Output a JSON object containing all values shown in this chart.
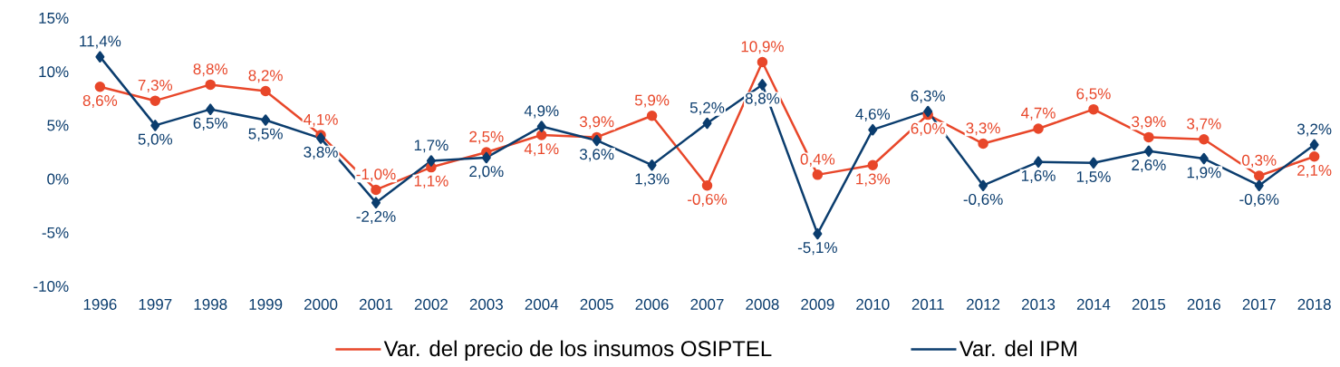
{
  "chart_data": {
    "type": "line",
    "categories": [
      "1996",
      "1997",
      "1998",
      "1999",
      "2000",
      "2001",
      "2002",
      "2003",
      "2004",
      "2005",
      "2006",
      "2007",
      "2008",
      "2009",
      "2010",
      "2011",
      "2012",
      "2013",
      "2014",
      "2015",
      "2016",
      "2017",
      "2018"
    ],
    "ylim": [
      -10,
      15
    ],
    "yticks": [
      {
        "value": -10,
        "label": "-10%"
      },
      {
        "value": -5,
        "label": "-5%"
      },
      {
        "value": 0,
        "label": "0%"
      },
      {
        "value": 5,
        "label": "5%"
      },
      {
        "value": 10,
        "label": "10%"
      },
      {
        "value": 15,
        "label": "15%"
      }
    ],
    "grid": false,
    "legend": "bottom",
    "series": [
      {
        "name": "Var. del precio de los insumos OSIPTEL",
        "color": "#e8472a",
        "marker": "circle",
        "values": [
          8.6,
          7.3,
          8.8,
          8.2,
          4.1,
          -1.0,
          1.1,
          2.5,
          4.1,
          3.9,
          5.9,
          -0.6,
          10.9,
          0.4,
          1.3,
          6.0,
          3.3,
          4.7,
          6.5,
          3.9,
          3.7,
          0.3,
          2.1
        ],
        "value_labels": [
          "8,6%",
          "7,3%",
          "8,8%",
          "8,2%",
          "4,1%",
          "-1,0%",
          "1,1%",
          "2,5%",
          "4,1%",
          "3,9%",
          "5,9%",
          "-0,6%",
          "10,9%",
          "0,4%",
          "1,3%",
          "6,0%",
          "3,3%",
          "4,7%",
          "6,5%",
          "3,9%",
          "3,7%",
          "0,3%",
          "2,1%"
        ]
      },
      {
        "name": "Var. del IPM",
        "color": "#0b3d6e",
        "marker": "diamond",
        "values": [
          11.4,
          5.0,
          6.5,
          5.5,
          3.8,
          -2.2,
          1.7,
          2.0,
          4.9,
          3.6,
          1.3,
          5.2,
          8.8,
          -5.1,
          4.6,
          6.3,
          -0.6,
          1.6,
          1.5,
          2.6,
          1.9,
          -0.6,
          3.2
        ],
        "value_labels": [
          "11,4%",
          "5,0%",
          "6,5%",
          "5,5%",
          "3,8%",
          "-2,2%",
          "1,7%",
          "2,0%",
          "4,9%",
          "3,6%",
          "1,3%",
          "5,2%",
          "8,8%",
          "-5,1%",
          "4,6%",
          "6,3%",
          "-0,6%",
          "1,6%",
          "1,5%",
          "2,6%",
          "1,9%",
          "-0,6%",
          "3,2%"
        ]
      }
    ]
  }
}
